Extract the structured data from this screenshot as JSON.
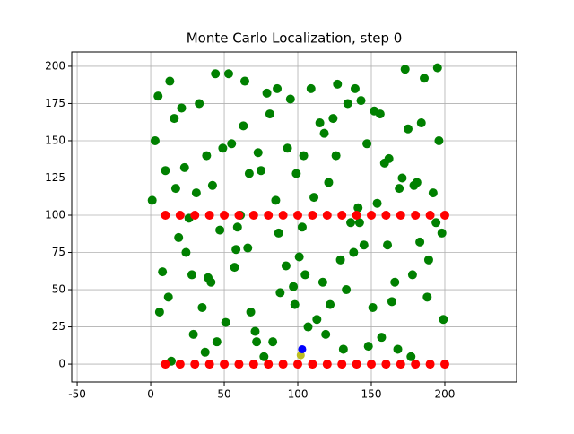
{
  "chart_data": {
    "type": "scatter",
    "title": "Monte Carlo Localization, step 0",
    "xlim": [
      -53.7,
      248.8
    ],
    "ylim": [
      -12,
      209.6
    ],
    "xticks": [
      -50,
      0,
      50,
      100,
      150,
      200
    ],
    "yticks": [
      0,
      25,
      50,
      75,
      100,
      125,
      150,
      175,
      200
    ],
    "grid": true,
    "series": [
      {
        "color": "green",
        "x": [
          5,
          12,
          23,
          37,
          44,
          58,
          63,
          71,
          85,
          92,
          104,
          113,
          127,
          136,
          148,
          152,
          166,
          171,
          183,
          195,
          8,
          17,
          29,
          33,
          47,
          55,
          68,
          77,
          81,
          99,
          101,
          118,
          122,
          139,
          141,
          157,
          162,
          178,
          186,
          198,
          3,
          14,
          26,
          39,
          42,
          51,
          64,
          73,
          88,
          95,
          107,
          111,
          124,
          133,
          145,
          159,
          168,
          175,
          189,
          192,
          10,
          19,
          21,
          35,
          49,
          57,
          61,
          79,
          83,
          97,
          103,
          115,
          129,
          131,
          143,
          154,
          164,
          173,
          181,
          199,
          6,
          16,
          28,
          31,
          45,
          53,
          66,
          75,
          87,
          93,
          109,
          117,
          121,
          138,
          147,
          151,
          169,
          177,
          184,
          194,
          1,
          13,
          24,
          38,
          41,
          59,
          67,
          72,
          86,
          98,
          105,
          119,
          126,
          134,
          142,
          156,
          161,
          179,
          188,
          196
        ],
        "y": [
          180,
          45,
          132,
          8,
          195,
          77,
          160,
          22,
          110,
          66,
          140,
          30,
          188,
          95,
          12,
          170,
          55,
          125,
          82,
          199,
          62,
          118,
          20,
          175,
          90,
          148,
          35,
          5,
          168,
          128,
          72,
          155,
          40,
          185,
          105,
          18,
          138,
          60,
          192,
          88,
          150,
          2,
          98,
          58,
          120,
          28,
          190,
          142,
          48,
          178,
          25,
          112,
          165,
          50,
          80,
          135,
          10,
          158,
          70,
          115,
          130,
          85,
          172,
          38,
          145,
          65,
          100,
          182,
          15,
          52,
          92,
          162,
          70,
          10,
          177,
          108,
          42,
          198,
          122,
          30,
          35,
          165,
          60,
          115,
          15,
          195,
          78,
          130,
          88,
          145,
          185,
          55,
          122,
          75,
          148,
          38,
          118,
          5,
          162,
          95,
          110,
          190,
          75,
          140,
          55,
          92,
          128,
          15,
          185,
          40,
          60,
          20,
          140,
          175,
          95,
          168,
          80,
          120,
          45,
          150
        ]
      },
      {
        "color": "red",
        "x": [
          10,
          20,
          30,
          40,
          50,
          60,
          70,
          80,
          90,
          100,
          110,
          120,
          130,
          140,
          150,
          160,
          170,
          180,
          190,
          200,
          10,
          20,
          30,
          40,
          50,
          60,
          70,
          80,
          90,
          100,
          110,
          120,
          130,
          140,
          150,
          160,
          170,
          180,
          190,
          200
        ],
        "y": [
          100,
          100,
          100,
          100,
          100,
          100,
          100,
          100,
          100,
          100,
          100,
          100,
          100,
          100,
          100,
          100,
          100,
          100,
          100,
          100,
          0,
          0,
          0,
          0,
          0,
          0,
          0,
          0,
          0,
          0,
          0,
          0,
          0,
          0,
          0,
          0,
          0,
          0,
          0,
          0
        ]
      },
      {
        "color": "#bcbd22",
        "x": [
          102
        ],
        "y": [
          6
        ]
      },
      {
        "color": "blue",
        "x": [
          103
        ],
        "y": [
          10
        ]
      }
    ]
  }
}
